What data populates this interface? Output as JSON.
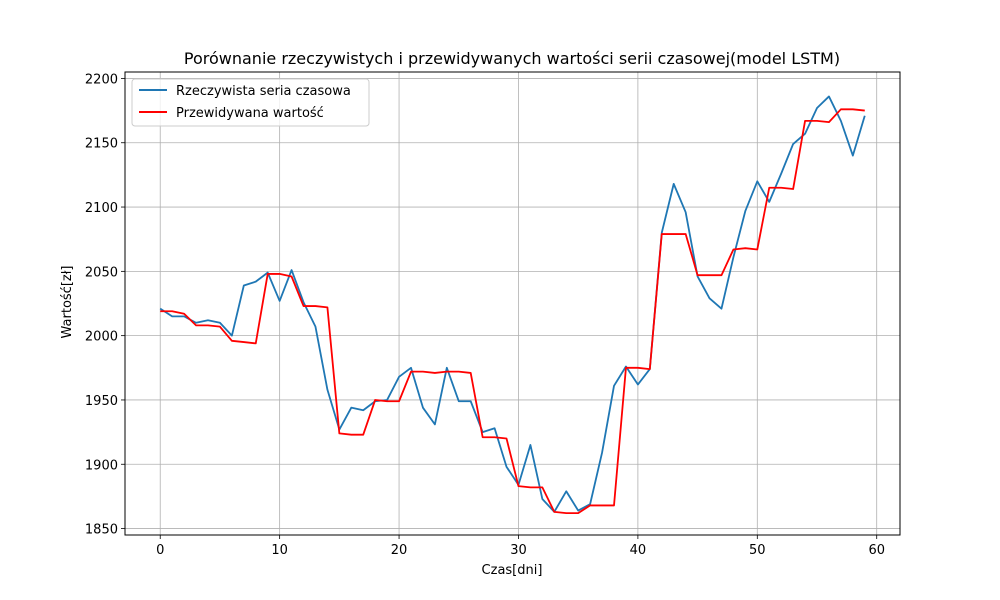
{
  "chart_data": {
    "type": "line",
    "title": "Porównanie rzeczywistych i przewidywanych wartości serii czasowej(model LSTM)",
    "xlabel": "Czas[dni]",
    "ylabel": "Wartość[zł]",
    "xlim": [
      -2.95,
      61.95
    ],
    "ylim": [
      1845,
      2205
    ],
    "xticks": [
      0,
      10,
      20,
      30,
      40,
      50,
      60
    ],
    "yticks": [
      1850,
      1900,
      1950,
      2000,
      2050,
      2100,
      2150,
      2200
    ],
    "grid": true,
    "legend_position": "top-left",
    "x": [
      0,
      1,
      2,
      3,
      4,
      5,
      6,
      7,
      8,
      9,
      10,
      11,
      12,
      13,
      14,
      15,
      16,
      17,
      18,
      19,
      20,
      21,
      22,
      23,
      24,
      25,
      26,
      27,
      28,
      29,
      30,
      31,
      32,
      33,
      34,
      35,
      36,
      37,
      38,
      39,
      40,
      41,
      42,
      43,
      44,
      45,
      46,
      47,
      48,
      49,
      50,
      51,
      52,
      53,
      54,
      55,
      56,
      57,
      58,
      59
    ],
    "series": [
      {
        "name": "Rzeczywista seria czasowa",
        "color": "#1f77b4",
        "values": [
          2021,
          2015,
          2015,
          2010,
          2012,
          2010,
          2000,
          2039,
          2042,
          2049,
          2027,
          2051,
          2026,
          2007,
          1958,
          1927,
          1944,
          1942,
          1949,
          1950,
          1968,
          1975,
          1944,
          1931,
          1975,
          1949,
          1949,
          1925,
          1928,
          1898,
          1884,
          1915,
          1873,
          1863,
          1879,
          1864,
          1869,
          1909,
          1961,
          1976,
          1962,
          1974,
          2080,
          2118,
          2096,
          2046,
          2029,
          2021,
          2061,
          2097,
          2120,
          2104,
          2126,
          2149,
          2157,
          2177,
          2186,
          2167,
          2140,
          2171
        ]
      },
      {
        "name": "Przewidywana wartość",
        "color": "#ff0000",
        "values": [
          2019,
          2019,
          2017,
          2008,
          2008,
          2007,
          1996,
          1995,
          1994,
          2048,
          2048,
          2046,
          2023,
          2023,
          2022,
          1924,
          1923,
          1923,
          1950,
          1949,
          1949,
          1972,
          1972,
          1971,
          1972,
          1972,
          1971,
          1921,
          1921,
          1920,
          1883,
          1882,
          1882,
          1863,
          1862,
          1862,
          1868,
          1868,
          1868,
          1975,
          1975,
          1974,
          2079,
          2079,
          2079,
          2047,
          2047,
          2047,
          2067,
          2068,
          2067,
          2115,
          2115,
          2114,
          2167,
          2167,
          2166,
          2176,
          2176,
          2175
        ]
      }
    ]
  }
}
